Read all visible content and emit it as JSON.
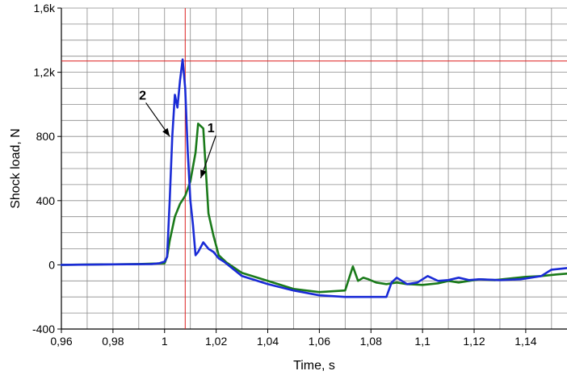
{
  "chart_data": {
    "type": "line",
    "title": "",
    "xlabel": "Time, s",
    "ylabel": "Shock load, N",
    "xlim": [
      0.96,
      1.156
    ],
    "ylim": [
      -400,
      1600
    ],
    "x_ticks": [
      {
        "value": 0.96,
        "label": "0,96"
      },
      {
        "value": 0.98,
        "label": "0,98"
      },
      {
        "value": 1.0,
        "label": "1"
      },
      {
        "value": 1.02,
        "label": "1,02"
      },
      {
        "value": 1.04,
        "label": "1,04"
      },
      {
        "value": 1.06,
        "label": "1,06"
      },
      {
        "value": 1.08,
        "label": "1,08"
      },
      {
        "value": 1.1,
        "label": "1,1"
      },
      {
        "value": 1.12,
        "label": "1,12"
      },
      {
        "value": 1.14,
        "label": "1,14"
      }
    ],
    "y_ticks": [
      {
        "value": -400,
        "label": "-400"
      },
      {
        "value": 0,
        "label": "0"
      },
      {
        "value": 400,
        "label": "400"
      },
      {
        "value": 800,
        "label": "800"
      },
      {
        "value": 1200,
        "label": "1,2k"
      },
      {
        "value": 1600,
        "label": "1,6k"
      }
    ],
    "grid": true,
    "cursor": {
      "x": 1.008,
      "y": 1270,
      "color": "#dd2222"
    },
    "annotations": [
      {
        "label": "1",
        "text_x": 1.018,
        "text_y": 825,
        "arrow_to_x": 1.014,
        "arrow_to_y": 540
      },
      {
        "label": "2",
        "text_x": 0.9915,
        "text_y": 1030,
        "arrow_to_x": 1.002,
        "arrow_to_y": 800
      }
    ],
    "series": [
      {
        "color": "#1a7a1a",
        "annotation": "1",
        "x": [
          0.96,
          0.99,
          1.0,
          1.001,
          1.002,
          1.004,
          1.006,
          1.008,
          1.01,
          1.012,
          1.013,
          1.015,
          1.017,
          1.019,
          1.021,
          1.024,
          1.03,
          1.04,
          1.05,
          1.06,
          1.07,
          1.071,
          1.073,
          1.075,
          1.077,
          1.079,
          1.082,
          1.086,
          1.09,
          1.094,
          1.1,
          1.106,
          1.11,
          1.114,
          1.118,
          1.122,
          1.128,
          1.134,
          1.14,
          1.146,
          1.152,
          1.156
        ],
        "y": [
          0,
          5,
          10,
          50,
          150,
          300,
          380,
          430,
          520,
          700,
          880,
          850,
          320,
          180,
          60,
          15,
          -50,
          -100,
          -150,
          -170,
          -160,
          -110,
          -10,
          -100,
          -80,
          -90,
          -110,
          -120,
          -110,
          -120,
          -125,
          -115,
          -100,
          -110,
          -100,
          -90,
          -95,
          -85,
          -75,
          -70,
          -60,
          -55
        ]
      },
      {
        "color": "#1a2bd6",
        "annotation": "2",
        "x": [
          0.96,
          0.995,
          0.998,
          1.0,
          1.001,
          1.002,
          1.003,
          1.004,
          1.005,
          1.006,
          1.007,
          1.008,
          1.009,
          1.01,
          1.011,
          1.012,
          1.013,
          1.015,
          1.017,
          1.019,
          1.021,
          1.023,
          1.03,
          1.04,
          1.05,
          1.06,
          1.07,
          1.08,
          1.086,
          1.088,
          1.09,
          1.094,
          1.098,
          1.102,
          1.106,
          1.11,
          1.114,
          1.118,
          1.122,
          1.13,
          1.138,
          1.146,
          1.15,
          1.156
        ],
        "y": [
          0,
          5,
          10,
          20,
          50,
          400,
          800,
          1060,
          980,
          1150,
          1280,
          1100,
          700,
          400,
          250,
          60,
          80,
          140,
          100,
          80,
          40,
          20,
          -70,
          -120,
          -160,
          -190,
          -200,
          -200,
          -200,
          -110,
          -80,
          -120,
          -110,
          -70,
          -100,
          -95,
          -80,
          -95,
          -90,
          -95,
          -90,
          -70,
          -30,
          -20
        ]
      }
    ]
  }
}
